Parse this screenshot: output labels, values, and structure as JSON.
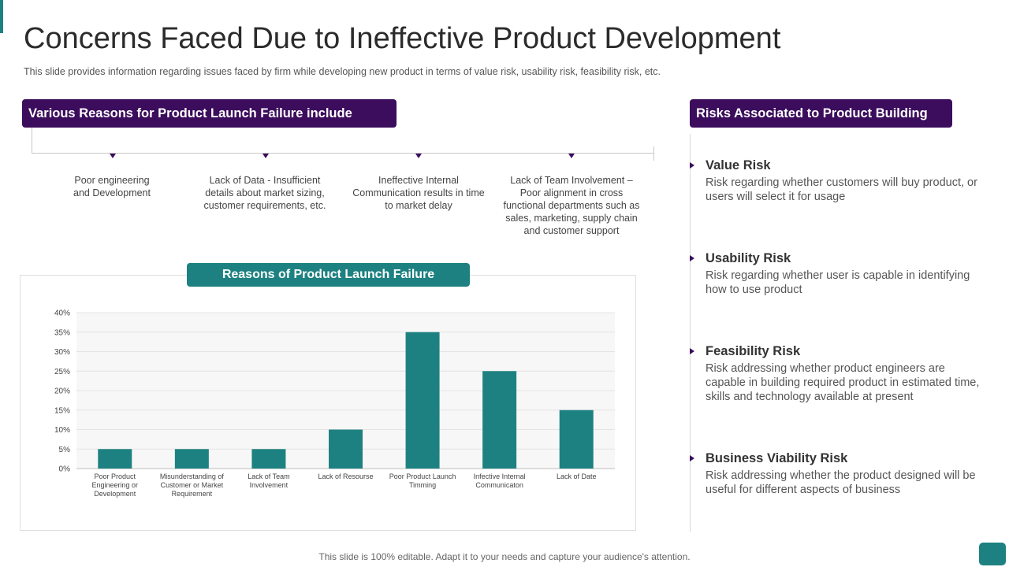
{
  "title": "Concerns Faced Due to Ineffective Product Development",
  "subtitle": "This slide provides  information  regarding  issues faced  by firm  while developing  new product  in terms of value  risk, usability risk, feasibility risk, etc.",
  "left_section": {
    "header": "Various Reasons for Product Launch Failure include",
    "reasons": [
      "Poor engineering\nand Development",
      "Lack of Data - Insufficient\ndetails about market sizing,\ncustomer requirements,  etc.",
      "Ineffective  Internal\nCommunication  results in time\nto market delay",
      "Lack of Team Involvement  –\nPoor alignment in cross\nfunctional departments  such as\nsales, marketing, supply chain\nand customer support"
    ]
  },
  "chart_section": {
    "header": "Reasons of Product Launch Failure"
  },
  "chart_data": {
    "type": "bar",
    "title": "Reasons of Product Launch Failure",
    "categories": [
      "Poor Product\nEngineering or\nDevelopment",
      "Misunderstanding of\nCustomer or Market\nRequirement",
      "Lack of Team\nInvolvement",
      "Lack of Resourse",
      "Poor Product Launch\nTimming",
      "Infective Internal\nCommunicaton",
      "Lack of Date"
    ],
    "values": [
      5,
      5,
      5,
      10,
      35,
      25,
      15
    ],
    "ylim": [
      0,
      40
    ],
    "yticks": [
      "0%",
      "5%",
      "10%",
      "15%",
      "20%",
      "25%",
      "30%",
      "35%",
      "40%"
    ],
    "xlabel": "",
    "ylabel": "",
    "bar_color": "#1e8181",
    "grid": true
  },
  "right_section": {
    "header": "Risks Associated to Product Building",
    "risks": [
      {
        "title": "Value Risk",
        "desc": "Risk regarding whether customers will buy product, or users will select it for usage"
      },
      {
        "title": "Usability Risk",
        "desc": "Risk regarding whether user is capable in identifying how to use product"
      },
      {
        "title": "Feasibility Risk",
        "desc": "Risk addressing whether product engineers are capable in building required product in estimated time, skills and technology available at present"
      },
      {
        "title": "Business Viability Risk",
        "desc": "Risk addressing whether the product designed will be useful for different aspects of business"
      }
    ]
  },
  "footer": "This slide is 100% editable. Adapt it to your needs and capture your audience's attention.",
  "colors": {
    "purple": "#3b0d5c",
    "teal": "#1e8181"
  }
}
